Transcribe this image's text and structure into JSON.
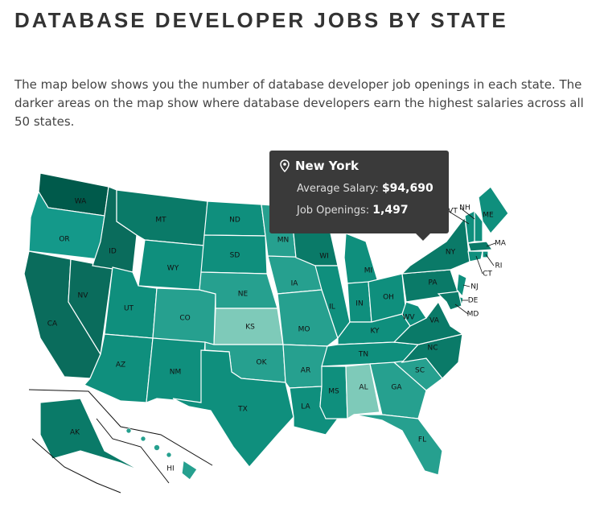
{
  "header": {
    "title": "DATABASE DEVELOPER JOBS BY STATE",
    "description": "The map below shows you the number of database developer job openings in each state. The darker areas on the map show where database developers earn the highest salaries across all 50 states."
  },
  "tooltip": {
    "state": "New York",
    "salary_label": "Average Salary:",
    "salary": "$94,690",
    "openings_label": "Job Openings:",
    "openings": "1,497"
  },
  "states": [
    {
      "abbr": "WA",
      "color": "#005a4b"
    },
    {
      "abbr": "OR",
      "color": "#14998a"
    },
    {
      "abbr": "CA",
      "color": "#0a6c5c"
    },
    {
      "abbr": "NV",
      "color": "#0a6c5c"
    },
    {
      "abbr": "ID",
      "color": "#0a6c5c"
    },
    {
      "abbr": "MT",
      "color": "#0a7a68"
    },
    {
      "abbr": "WY",
      "color": "#0f8f7d"
    },
    {
      "abbr": "UT",
      "color": "#0f8f7d"
    },
    {
      "abbr": "CO",
      "color": "#26a08f"
    },
    {
      "abbr": "AZ",
      "color": "#0f8f7d"
    },
    {
      "abbr": "NM",
      "color": "#0f8f7d"
    },
    {
      "abbr": "ND",
      "color": "#0f8f7d"
    },
    {
      "abbr": "SD",
      "color": "#0f8f7d"
    },
    {
      "abbr": "NE",
      "color": "#26a08f"
    },
    {
      "abbr": "KS",
      "color": "#7ecab9"
    },
    {
      "abbr": "OK",
      "color": "#26a08f"
    },
    {
      "abbr": "TX",
      "color": "#0f8f7d"
    },
    {
      "abbr": "MN",
      "color": "#26a08f"
    },
    {
      "abbr": "IA",
      "color": "#26a08f"
    },
    {
      "abbr": "MO",
      "color": "#26a08f"
    },
    {
      "abbr": "AR",
      "color": "#26a08f"
    },
    {
      "abbr": "LA",
      "color": "#0f8f7d"
    },
    {
      "abbr": "WI",
      "color": "#0a7a68"
    },
    {
      "abbr": "IL",
      "color": "#0f8f7d"
    },
    {
      "abbr": "MI",
      "color": "#0f8f7d"
    },
    {
      "abbr": "IN",
      "color": "#0f8f7d"
    },
    {
      "abbr": "OH",
      "color": "#0f8f7d"
    },
    {
      "abbr": "KY",
      "color": "#0f8f7d"
    },
    {
      "abbr": "TN",
      "color": "#0f8f7d"
    },
    {
      "abbr": "MS",
      "color": "#0f8f7d"
    },
    {
      "abbr": "AL",
      "color": "#7ecab9"
    },
    {
      "abbr": "GA",
      "color": "#26a08f"
    },
    {
      "abbr": "FL",
      "color": "#26a08f"
    },
    {
      "abbr": "SC",
      "color": "#26a08f"
    },
    {
      "abbr": "NC",
      "color": "#0a7a68"
    },
    {
      "abbr": "VA",
      "color": "#0a7a68"
    },
    {
      "abbr": "WV",
      "color": "#0f8f7d"
    },
    {
      "abbr": "PA",
      "color": "#0a7a68"
    },
    {
      "abbr": "NY",
      "color": "#0a7a68"
    },
    {
      "abbr": "ME",
      "color": "#0f8f7d"
    },
    {
      "abbr": "NH",
      "color": "#0f8f7d"
    },
    {
      "abbr": "VT",
      "color": "#0f8f7d"
    },
    {
      "abbr": "MA",
      "color": "#0a7a68"
    },
    {
      "abbr": "RI",
      "color": "#0f8f7d"
    },
    {
      "abbr": "CT",
      "color": "#0f8f7d"
    },
    {
      "abbr": "NJ",
      "color": "#0f8f7d"
    },
    {
      "abbr": "DE",
      "color": "#0f8f7d"
    },
    {
      "abbr": "MD",
      "color": "#0a7a68"
    },
    {
      "abbr": "AK",
      "color": "#0a7a68"
    },
    {
      "abbr": "HI",
      "color": "#26a08f"
    }
  ]
}
